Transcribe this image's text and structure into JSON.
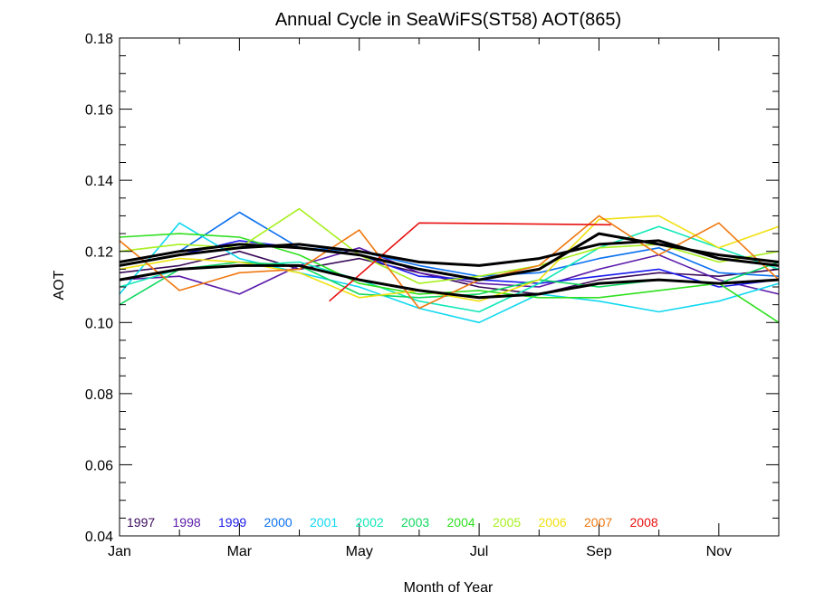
{
  "chart_data": {
    "type": "line",
    "title": "Annual Cycle in SeaWiFS(ST58) AOT(865)",
    "xlabel": "Month of Year",
    "ylabel": "AOT",
    "xlim": [
      1,
      12
    ],
    "ylim": [
      0.04,
      0.18
    ],
    "x_ticks": [
      {
        "label": "Jan",
        "value": 1
      },
      {
        "label": "Mar",
        "value": 3
      },
      {
        "label": "May",
        "value": 5
      },
      {
        "label": "Jul",
        "value": 7
      },
      {
        "label": "Sep",
        "value": 9
      },
      {
        "label": "Nov",
        "value": 11
      }
    ],
    "y_ticks": [
      "0.04",
      "0.06",
      "0.08",
      "0.10",
      "0.12",
      "0.14",
      "0.16",
      "0.18"
    ],
    "legend_placement": "bottom-left",
    "grid": false,
    "series": [
      {
        "name": "1997",
        "color": "#3b0a5a",
        "x": [
          1,
          2,
          3,
          4,
          5,
          6,
          7,
          8,
          9,
          10,
          11,
          12
        ],
        "y": [
          0.114,
          0.116,
          0.12,
          0.115,
          0.118,
          0.114,
          0.11,
          0.108,
          0.112,
          0.114,
          0.113,
          0.115
        ]
      },
      {
        "name": "1998",
        "color": "#5a1aa8",
        "x": [
          1,
          2,
          3,
          4,
          5,
          6,
          7,
          8,
          9,
          10,
          11,
          12
        ],
        "y": [
          0.112,
          0.113,
          0.108,
          0.116,
          0.121,
          0.114,
          0.111,
          0.11,
          0.115,
          0.119,
          0.112,
          0.108
        ]
      },
      {
        "name": "1999",
        "color": "#1a1aee",
        "x": [
          1,
          2,
          3,
          4,
          5,
          6,
          7,
          8,
          9,
          10,
          11,
          12
        ],
        "y": [
          0.116,
          0.119,
          0.123,
          0.121,
          0.119,
          0.113,
          0.112,
          0.111,
          0.113,
          0.115,
          0.11,
          0.112
        ]
      },
      {
        "name": "2000",
        "color": "#0a70f0",
        "x": [
          1,
          2,
          3,
          4,
          5,
          6,
          7,
          8,
          9,
          10,
          11,
          12
        ],
        "y": [
          0.117,
          0.12,
          0.131,
          0.121,
          0.12,
          0.116,
          0.113,
          0.114,
          0.118,
          0.121,
          0.114,
          0.113
        ]
      },
      {
        "name": "2001",
        "color": "#10d8f0",
        "x": [
          1,
          2,
          3,
          4,
          5,
          6,
          7,
          8,
          9,
          10,
          11,
          12
        ],
        "y": [
          0.108,
          0.128,
          0.118,
          0.114,
          0.11,
          0.104,
          0.1,
          0.108,
          0.106,
          0.103,
          0.106,
          0.111
        ]
      },
      {
        "name": "2002",
        "color": "#10e8b8",
        "x": [
          1,
          2,
          3,
          4,
          5,
          6,
          7,
          8,
          9,
          10,
          11,
          12
        ],
        "y": [
          0.11,
          0.115,
          0.116,
          0.117,
          0.112,
          0.106,
          0.103,
          0.111,
          0.121,
          0.127,
          0.121,
          0.115
        ]
      },
      {
        "name": "2003",
        "color": "#10d860",
        "x": [
          1,
          2,
          3,
          4,
          5,
          6,
          7,
          8,
          9,
          10,
          11,
          12
        ],
        "y": [
          0.105,
          0.115,
          0.117,
          0.116,
          0.108,
          0.107,
          0.108,
          0.112,
          0.11,
          0.112,
          0.111,
          0.117
        ]
      },
      {
        "name": "2004",
        "color": "#30e020",
        "x": [
          1,
          2,
          3,
          4,
          5,
          6,
          7,
          8,
          9,
          10,
          11,
          12
        ],
        "y": [
          0.124,
          0.125,
          0.124,
          0.119,
          0.111,
          0.108,
          0.109,
          0.107,
          0.107,
          0.109,
          0.111,
          0.1
        ]
      },
      {
        "name": "2005",
        "color": "#a8f020",
        "x": [
          1,
          2,
          3,
          4,
          5,
          6,
          7,
          8,
          9,
          10,
          11,
          12
        ],
        "y": [
          0.12,
          0.122,
          0.121,
          0.132,
          0.119,
          0.111,
          0.113,
          0.116,
          0.121,
          0.122,
          0.117,
          0.12
        ]
      },
      {
        "name": "2006",
        "color": "#f0e010",
        "x": [
          1,
          2,
          3,
          4,
          5,
          6,
          7,
          8,
          9,
          10,
          11,
          12
        ],
        "y": [
          0.115,
          0.118,
          0.117,
          0.114,
          0.107,
          0.109,
          0.106,
          0.112,
          0.129,
          0.13,
          0.121,
          0.127
        ]
      },
      {
        "name": "2007",
        "color": "#f07810",
        "x": [
          1,
          2,
          3,
          4,
          5,
          6,
          7,
          8,
          9,
          10,
          11,
          12
        ],
        "y": [
          0.123,
          0.109,
          0.114,
          0.115,
          0.126,
          0.104,
          0.112,
          0.116,
          0.13,
          0.119,
          0.128,
          0.112
        ]
      },
      {
        "name": "2008",
        "color": "#e81010",
        "x": [
          4.5,
          6,
          9.2
        ],
        "y": [
          0.106,
          0.128,
          0.1275
        ]
      },
      {
        "name": "mean",
        "color": "#000000",
        "x": [
          1,
          2,
          3,
          4,
          5,
          6,
          7,
          8,
          9,
          10,
          11,
          12
        ],
        "y": [
          0.117,
          0.12,
          0.122,
          0.121,
          0.119,
          0.115,
          0.112,
          0.115,
          0.125,
          0.122,
          0.119,
          0.117
        ]
      },
      {
        "name": "mean_upper",
        "color": "#000000",
        "x": [
          1,
          2,
          3,
          4,
          5,
          6,
          7,
          8,
          9,
          10,
          11,
          12
        ],
        "y": [
          0.116,
          0.119,
          0.121,
          0.122,
          0.12,
          0.117,
          0.116,
          0.118,
          0.122,
          0.123,
          0.118,
          0.116
        ]
      },
      {
        "name": "mean_lower",
        "color": "#000000",
        "x": [
          1,
          2,
          3,
          4,
          5,
          6,
          7,
          8,
          9,
          10,
          11,
          12
        ],
        "y": [
          0.112,
          0.115,
          0.116,
          0.116,
          0.112,
          0.109,
          0.107,
          0.108,
          0.111,
          0.112,
          0.111,
          0.112
        ]
      }
    ]
  }
}
